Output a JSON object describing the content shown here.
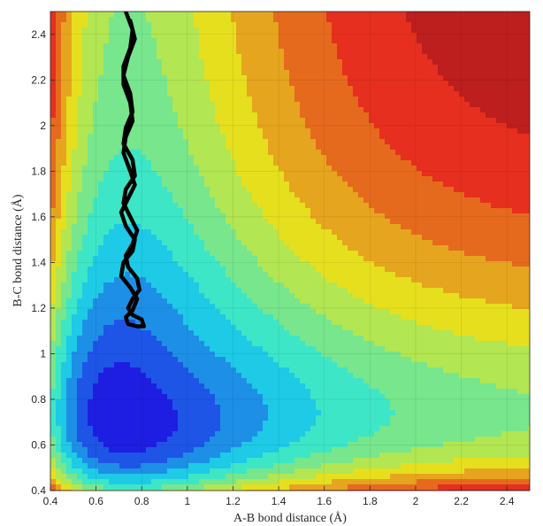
{
  "chart_data": {
    "type": "contour",
    "title": "",
    "xlabel": "A-B bond distance (Å)",
    "ylabel": "B-C bond distance (Å)",
    "xlim": [
      0.4,
      2.5
    ],
    "ylim": [
      0.4,
      2.5
    ],
    "x_ticks": [
      0.4,
      0.6,
      0.8,
      1,
      1.2,
      1.4,
      1.6,
      1.8,
      2,
      2.2,
      2.4
    ],
    "y_ticks": [
      0.4,
      0.6,
      0.8,
      1,
      1.2,
      1.4,
      1.6,
      1.8,
      2,
      2.2,
      2.4
    ],
    "x_tick_labels": [
      "0.4",
      "0.6",
      "0.8",
      "1",
      "1.2",
      "1.4",
      "1.6",
      "1.8",
      "2",
      "2.2",
      "2.4"
    ],
    "y_tick_labels": [
      "0.4",
      "0.6",
      "0.8",
      "1",
      "1.2",
      "1.4",
      "1.6",
      "1.8",
      "2",
      "2.2",
      "2.4"
    ],
    "grid": true,
    "colormap": "jet",
    "background_color": "#b04c4c",
    "surface": {
      "description_type": "LEPS-like potential energy surface (filled contours)",
      "well_bottom_r": 0.74,
      "morse_a": 1.9,
      "levels": 12,
      "clip_level": 0.95
    },
    "trajectory": {
      "color": "#000000",
      "points": [
        [
          0.73,
          2.5
        ],
        [
          0.76,
          2.42
        ],
        [
          0.75,
          2.34
        ],
        [
          0.72,
          2.26
        ],
        [
          0.72,
          2.18
        ],
        [
          0.75,
          2.1
        ],
        [
          0.76,
          2.02
        ],
        [
          0.73,
          1.95
        ],
        [
          0.72,
          1.88
        ],
        [
          0.75,
          1.8
        ],
        [
          0.77,
          1.74
        ],
        [
          0.74,
          1.68
        ],
        [
          0.71,
          1.62
        ],
        [
          0.73,
          1.56
        ],
        [
          0.77,
          1.5
        ],
        [
          0.76,
          1.45
        ],
        [
          0.72,
          1.4
        ],
        [
          0.71,
          1.34
        ],
        [
          0.75,
          1.29
        ],
        [
          0.78,
          1.24
        ],
        [
          0.76,
          1.19
        ],
        [
          0.73,
          1.16
        ],
        [
          0.74,
          1.13
        ],
        [
          0.78,
          1.12
        ],
        [
          0.81,
          1.12
        ],
        [
          0.8,
          1.15
        ],
        [
          0.76,
          1.17
        ],
        [
          0.74,
          1.2
        ],
        [
          0.76,
          1.24
        ],
        [
          0.79,
          1.28
        ],
        [
          0.78,
          1.33
        ],
        [
          0.74,
          1.38
        ],
        [
          0.73,
          1.43
        ],
        [
          0.76,
          1.48
        ],
        [
          0.78,
          1.54
        ],
        [
          0.75,
          1.6
        ],
        [
          0.72,
          1.66
        ],
        [
          0.73,
          1.72
        ],
        [
          0.77,
          1.78
        ],
        [
          0.76,
          1.85
        ],
        [
          0.72,
          1.92
        ],
        [
          0.73,
          1.99
        ],
        [
          0.76,
          2.06
        ],
        [
          0.75,
          2.14
        ],
        [
          0.72,
          2.22
        ],
        [
          0.74,
          2.3
        ],
        [
          0.77,
          2.38
        ],
        [
          0.75,
          2.46
        ]
      ]
    }
  }
}
